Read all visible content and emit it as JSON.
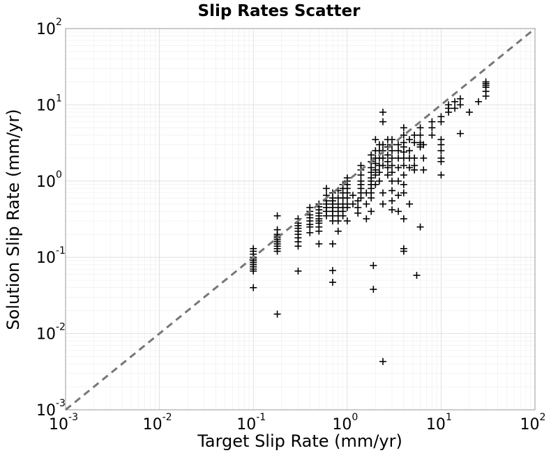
{
  "chart_data": {
    "type": "scatter",
    "title": "Slip Rates Scatter",
    "xlabel": "Target Slip Rate (mm/yr)",
    "ylabel": "Solution Slip Rate (mm/yr)",
    "xscale": "log",
    "yscale": "log",
    "xlim": [
      0.001,
      100
    ],
    "ylim": [
      0.001,
      100
    ],
    "grid": true,
    "legend": "none",
    "x_ticks": [
      {
        "base": "10",
        "exp": "-3"
      },
      {
        "base": "10",
        "exp": "-2"
      },
      {
        "base": "10",
        "exp": "-1"
      },
      {
        "base": "10",
        "exp": "0"
      },
      {
        "base": "10",
        "exp": "1"
      },
      {
        "base": "10",
        "exp": "2"
      }
    ],
    "y_ticks": [
      {
        "base": "10",
        "exp": "-3"
      },
      {
        "base": "10",
        "exp": "-2"
      },
      {
        "base": "10",
        "exp": "-1"
      },
      {
        "base": "10",
        "exp": "0"
      },
      {
        "base": "10",
        "exp": "1"
      },
      {
        "base": "10",
        "exp": "2"
      }
    ],
    "reference_line": {
      "x": [
        0.001,
        100
      ],
      "y": [
        0.001,
        100
      ],
      "style": "dashed",
      "color": "#777777"
    },
    "marker": {
      "shape": "plus",
      "color": "#000000"
    },
    "points": [
      [
        0.1,
        0.13
      ],
      [
        0.1,
        0.12
      ],
      [
        0.1,
        0.11
      ],
      [
        0.1,
        0.1
      ],
      [
        0.1,
        0.095
      ],
      [
        0.1,
        0.09
      ],
      [
        0.1,
        0.085
      ],
      [
        0.1,
        0.08
      ],
      [
        0.1,
        0.075
      ],
      [
        0.1,
        0.07
      ],
      [
        0.1,
        0.066
      ],
      [
        0.1,
        0.04
      ],
      [
        0.18,
        0.35
      ],
      [
        0.18,
        0.23
      ],
      [
        0.18,
        0.2
      ],
      [
        0.18,
        0.19
      ],
      [
        0.18,
        0.18
      ],
      [
        0.18,
        0.17
      ],
      [
        0.18,
        0.16
      ],
      [
        0.18,
        0.15
      ],
      [
        0.18,
        0.14
      ],
      [
        0.18,
        0.13
      ],
      [
        0.18,
        0.12
      ],
      [
        0.18,
        0.018
      ],
      [
        0.3,
        0.32
      ],
      [
        0.3,
        0.28
      ],
      [
        0.3,
        0.26
      ],
      [
        0.3,
        0.24
      ],
      [
        0.3,
        0.22
      ],
      [
        0.3,
        0.2
      ],
      [
        0.3,
        0.18
      ],
      [
        0.3,
        0.16
      ],
      [
        0.3,
        0.14
      ],
      [
        0.3,
        0.066
      ],
      [
        0.4,
        0.45
      ],
      [
        0.4,
        0.4
      ],
      [
        0.4,
        0.36
      ],
      [
        0.4,
        0.33
      ],
      [
        0.4,
        0.3
      ],
      [
        0.4,
        0.27
      ],
      [
        0.4,
        0.25
      ],
      [
        0.4,
        0.21
      ],
      [
        0.5,
        0.5
      ],
      [
        0.5,
        0.46
      ],
      [
        0.5,
        0.42
      ],
      [
        0.5,
        0.38
      ],
      [
        0.5,
        0.35
      ],
      [
        0.5,
        0.32
      ],
      [
        0.5,
        0.3
      ],
      [
        0.5,
        0.28
      ],
      [
        0.5,
        0.25
      ],
      [
        0.5,
        0.22
      ],
      [
        0.5,
        0.15
      ],
      [
        0.6,
        0.8
      ],
      [
        0.6,
        0.65
      ],
      [
        0.6,
        0.55
      ],
      [
        0.6,
        0.5
      ],
      [
        0.6,
        0.45
      ],
      [
        0.6,
        0.4
      ],
      [
        0.6,
        0.35
      ],
      [
        0.7,
        0.7
      ],
      [
        0.7,
        0.6
      ],
      [
        0.7,
        0.55
      ],
      [
        0.7,
        0.5
      ],
      [
        0.7,
        0.45
      ],
      [
        0.7,
        0.4
      ],
      [
        0.7,
        0.35
      ],
      [
        0.7,
        0.3
      ],
      [
        0.7,
        0.15
      ],
      [
        0.7,
        0.067
      ],
      [
        0.7,
        0.047
      ],
      [
        0.8,
        0.75
      ],
      [
        0.8,
        0.6
      ],
      [
        0.8,
        0.5
      ],
      [
        0.8,
        0.45
      ],
      [
        0.8,
        0.4
      ],
      [
        0.8,
        0.35
      ],
      [
        0.8,
        0.3
      ],
      [
        0.8,
        0.22
      ],
      [
        0.9,
        0.9
      ],
      [
        0.9,
        0.8
      ],
      [
        0.9,
        0.7
      ],
      [
        0.9,
        0.6
      ],
      [
        0.9,
        0.5
      ],
      [
        0.9,
        0.45
      ],
      [
        0.9,
        0.4
      ],
      [
        0.9,
        0.35
      ],
      [
        1.0,
        1.1
      ],
      [
        1.0,
        1.0
      ],
      [
        1.0,
        0.9
      ],
      [
        1.0,
        0.8
      ],
      [
        1.0,
        0.7
      ],
      [
        1.0,
        0.6
      ],
      [
        1.0,
        0.5
      ],
      [
        1.0,
        0.45
      ],
      [
        1.0,
        0.3
      ],
      [
        1.15,
        0.65
      ],
      [
        1.15,
        0.5
      ],
      [
        1.3,
        0.55
      ],
      [
        1.3,
        0.45
      ],
      [
        1.3,
        0.38
      ],
      [
        1.4,
        1.6
      ],
      [
        1.4,
        1.4
      ],
      [
        1.4,
        1.2
      ],
      [
        1.4,
        1.0
      ],
      [
        1.4,
        0.9
      ],
      [
        1.4,
        0.8
      ],
      [
        1.4,
        0.7
      ],
      [
        1.4,
        0.6
      ],
      [
        1.6,
        0.7
      ],
      [
        1.6,
        0.5
      ],
      [
        1.6,
        0.32
      ],
      [
        1.8,
        2.2
      ],
      [
        1.8,
        1.8
      ],
      [
        1.8,
        1.5
      ],
      [
        1.8,
        1.3
      ],
      [
        1.8,
        1.1
      ],
      [
        1.8,
        1.0
      ],
      [
        1.8,
        0.9
      ],
      [
        1.8,
        0.8
      ],
      [
        1.8,
        0.7
      ],
      [
        1.8,
        0.6
      ],
      [
        1.8,
        0.4
      ],
      [
        1.9,
        0.078
      ],
      [
        1.9,
        0.038
      ],
      [
        2.0,
        3.5
      ],
      [
        2.0,
        2.5
      ],
      [
        2.0,
        2.0
      ],
      [
        2.0,
        1.7
      ],
      [
        2.0,
        1.4
      ],
      [
        2.0,
        1.2
      ],
      [
        2.0,
        0.9
      ],
      [
        2.2,
        3.0
      ],
      [
        2.2,
        2.5
      ],
      [
        2.2,
        2.0
      ],
      [
        2.2,
        1.6
      ],
      [
        2.2,
        1.3
      ],
      [
        2.2,
        1.0
      ],
      [
        2.4,
        8.0
      ],
      [
        2.4,
        6.0
      ],
      [
        2.4,
        3.0
      ],
      [
        2.4,
        2.5
      ],
      [
        2.4,
        2.0
      ],
      [
        2.4,
        1.6
      ],
      [
        2.4,
        0.7
      ],
      [
        2.4,
        0.5
      ],
      [
        2.4,
        0.0043
      ],
      [
        2.7,
        3.5
      ],
      [
        2.7,
        2.8
      ],
      [
        2.7,
        2.2
      ],
      [
        2.7,
        1.8
      ],
      [
        2.7,
        1.5
      ],
      [
        2.7,
        1.2
      ],
      [
        3.0,
        3.5
      ],
      [
        3.0,
        3.0
      ],
      [
        3.0,
        2.5
      ],
      [
        3.0,
        2.0
      ],
      [
        3.0,
        1.6
      ],
      [
        3.0,
        1.3
      ],
      [
        3.0,
        1.0
      ],
      [
        3.0,
        0.75
      ],
      [
        3.0,
        0.55
      ],
      [
        3.0,
        0.42
      ],
      [
        3.5,
        3.0
      ],
      [
        3.5,
        2.5
      ],
      [
        3.5,
        2.0
      ],
      [
        3.5,
        1.5
      ],
      [
        3.5,
        1.0
      ],
      [
        3.5,
        0.65
      ],
      [
        3.5,
        0.4
      ],
      [
        4.0,
        5.0
      ],
      [
        4.0,
        4.0
      ],
      [
        4.0,
        3.2
      ],
      [
        4.0,
        2.8
      ],
      [
        4.0,
        2.4
      ],
      [
        4.0,
        2.0
      ],
      [
        4.0,
        1.6
      ],
      [
        4.0,
        1.2
      ],
      [
        4.0,
        0.9
      ],
      [
        4.0,
        0.7
      ],
      [
        4.0,
        0.32
      ],
      [
        4.0,
        0.13
      ],
      [
        4.0,
        0.12
      ],
      [
        4.6,
        3.5
      ],
      [
        4.6,
        2.5
      ],
      [
        4.6,
        2.0
      ],
      [
        4.6,
        1.5
      ],
      [
        4.6,
        0.5
      ],
      [
        5.2,
        4.0
      ],
      [
        5.2,
        3.2
      ],
      [
        5.2,
        2.0
      ],
      [
        5.2,
        1.6
      ],
      [
        5.2,
        1.4
      ],
      [
        5.5,
        0.058
      ],
      [
        6.0,
        5.0
      ],
      [
        6.0,
        4.0
      ],
      [
        6.0,
        3.2
      ],
      [
        6.0,
        3.0
      ],
      [
        6.0,
        2.8
      ],
      [
        6.0,
        0.25
      ],
      [
        6.5,
        3.0
      ],
      [
        6.5,
        2.0
      ],
      [
        6.5,
        1.4
      ],
      [
        8.0,
        6.0
      ],
      [
        8.0,
        5.0
      ],
      [
        8.0,
        4.0
      ],
      [
        10.0,
        7.0
      ],
      [
        10.0,
        6.0
      ],
      [
        10.0,
        3.5
      ],
      [
        10.0,
        3.0
      ],
      [
        10.0,
        2.5
      ],
      [
        10.0,
        2.0
      ],
      [
        10.0,
        1.8
      ],
      [
        10.0,
        1.2
      ],
      [
        12.0,
        10.0
      ],
      [
        12.0,
        9.0
      ],
      [
        12.0,
        8.0
      ],
      [
        14.0,
        11.0
      ],
      [
        14.0,
        9.0
      ],
      [
        16.0,
        12.0
      ],
      [
        16.0,
        10.0
      ],
      [
        16.0,
        4.2
      ],
      [
        20.0,
        8.0
      ],
      [
        25.0,
        11.0
      ],
      [
        30.0,
        20.0
      ],
      [
        30.0,
        19.0
      ],
      [
        30.0,
        18.0
      ],
      [
        30.0,
        17.0
      ],
      [
        30.0,
        15.0
      ],
      [
        30.0,
        13.0
      ]
    ]
  }
}
